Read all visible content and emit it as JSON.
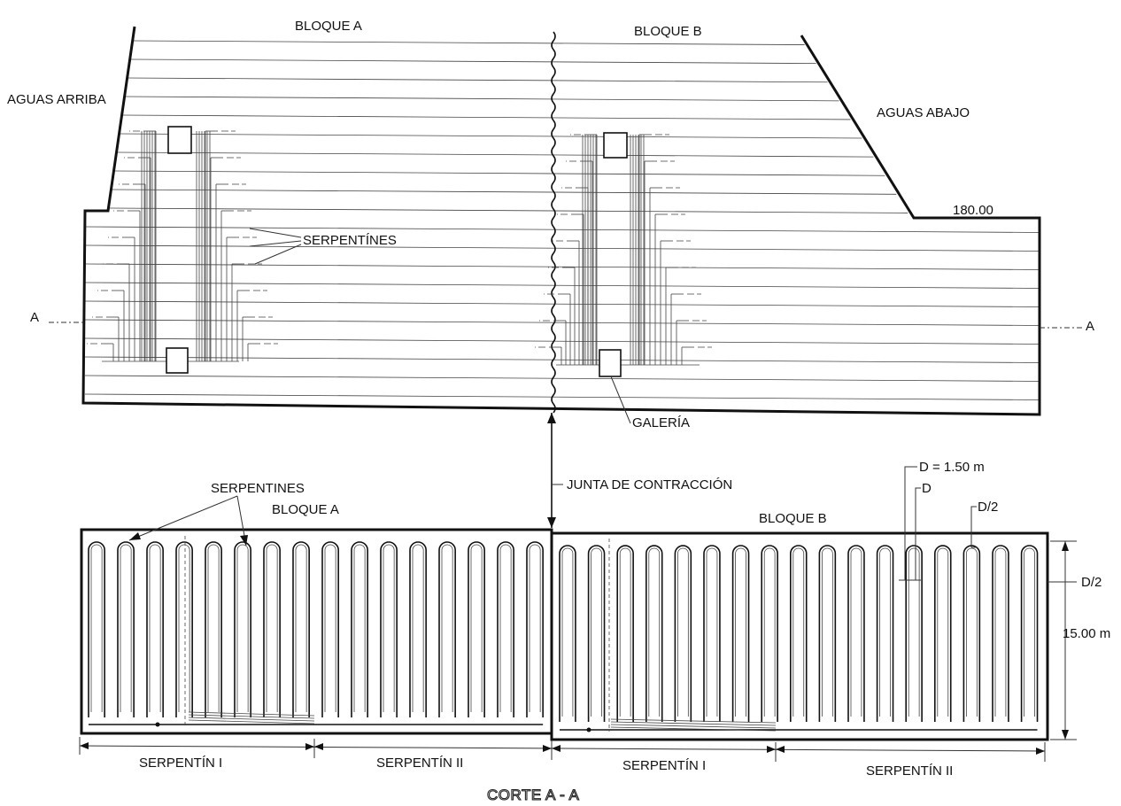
{
  "labels": {
    "block_a_top": "BLOQUE A",
    "block_b_top": "BLOQUE B",
    "upstream": "AGUAS ARRIBA",
    "downstream": "AGUAS ABAJO",
    "elevation": "180.00",
    "coils_top": "SERPENTÍNES",
    "section_left": "A",
    "section_right": "A",
    "gallery": "GALERÍA",
    "contraction_joint": "JUNTA DE CONTRACCIÓN",
    "coils_plan": "SERPENTINES",
    "block_a_plan": "BLOQUE A",
    "block_b_plan": "BLOQUE B",
    "dim_d": "D = 1.50 m",
    "dim_d_short": "D",
    "dim_half_top": "D/2",
    "dim_half_right": "D/2",
    "dim_height": "15.00 m",
    "coil_1_a": "SERPENTÍN I",
    "coil_2_a": "SERPENTÍN II",
    "coil_1_b": "SERPENTÍN I",
    "coil_2_b": "SERPENTÍN II",
    "caption": "CORTE A - A"
  }
}
